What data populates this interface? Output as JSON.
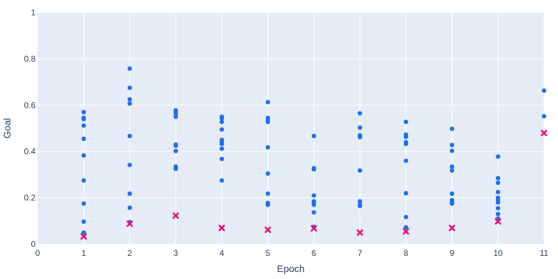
{
  "chart_data": {
    "type": "scatter",
    "title": "",
    "xlabel": "Epoch",
    "ylabel": "Goal",
    "xlim": [
      0,
      11
    ],
    "ylim": [
      0,
      1
    ],
    "xticks": [
      0,
      1,
      2,
      3,
      4,
      5,
      6,
      7,
      8,
      9,
      10,
      11
    ],
    "yticks": [
      0,
      0.2,
      0.4,
      0.6,
      0.8,
      1
    ],
    "ytick_labels": [
      "0",
      "0.2",
      "0.4",
      "0.6",
      "0.8",
      "1"
    ],
    "grid": true,
    "legend": "none",
    "colors": {
      "plot_bg": "#e5ecf6",
      "grid": "#ffffff",
      "points": "#1f6ff2",
      "best": "#e8107a",
      "text": "#2a3f5f"
    },
    "series": [
      {
        "marker": "circle",
        "points": [
          [
            1,
            0.57
          ],
          [
            1,
            0.545
          ],
          [
            1,
            0.54
          ],
          [
            1,
            0.512
          ],
          [
            1,
            0.455
          ],
          [
            1,
            0.383
          ],
          [
            1,
            0.275
          ],
          [
            1,
            0.175
          ],
          [
            1,
            0.097
          ],
          [
            1,
            0.05
          ],
          [
            2,
            0.758
          ],
          [
            2,
            0.675
          ],
          [
            2,
            0.625
          ],
          [
            2,
            0.607
          ],
          [
            2,
            0.467
          ],
          [
            2,
            0.342
          ],
          [
            2,
            0.218
          ],
          [
            2,
            0.157
          ],
          [
            2,
            0.095
          ],
          [
            3,
            0.578
          ],
          [
            3,
            0.57
          ],
          [
            3,
            0.562
          ],
          [
            3,
            0.55
          ],
          [
            3,
            0.43
          ],
          [
            3,
            0.425
          ],
          [
            3,
            0.402
          ],
          [
            3,
            0.335
          ],
          [
            3,
            0.325
          ],
          [
            4,
            0.55
          ],
          [
            4,
            0.543
          ],
          [
            4,
            0.528
          ],
          [
            4,
            0.495
          ],
          [
            4,
            0.45
          ],
          [
            4,
            0.44
          ],
          [
            4,
            0.433
          ],
          [
            4,
            0.412
          ],
          [
            4,
            0.368
          ],
          [
            4,
            0.275
          ],
          [
            5,
            0.613
          ],
          [
            5,
            0.545
          ],
          [
            5,
            0.535
          ],
          [
            5,
            0.528
          ],
          [
            5,
            0.418
          ],
          [
            5,
            0.305
          ],
          [
            5,
            0.218
          ],
          [
            5,
            0.178
          ],
          [
            5,
            0.17
          ],
          [
            6,
            0.467
          ],
          [
            6,
            0.328
          ],
          [
            6,
            0.323
          ],
          [
            6,
            0.21
          ],
          [
            6,
            0.185
          ],
          [
            6,
            0.175
          ],
          [
            6,
            0.17
          ],
          [
            6,
            0.137
          ],
          [
            6,
            0.075
          ],
          [
            7,
            0.565
          ],
          [
            7,
            0.503
          ],
          [
            7,
            0.47
          ],
          [
            7,
            0.462
          ],
          [
            7,
            0.318
          ],
          [
            7,
            0.185
          ],
          [
            7,
            0.17
          ],
          [
            7,
            0.165
          ],
          [
            8,
            0.528
          ],
          [
            8,
            0.473
          ],
          [
            8,
            0.463
          ],
          [
            8,
            0.44
          ],
          [
            8,
            0.433
          ],
          [
            8,
            0.36
          ],
          [
            8,
            0.22
          ],
          [
            8,
            0.117
          ],
          [
            8,
            0.073
          ],
          [
            9,
            0.498
          ],
          [
            9,
            0.428
          ],
          [
            9,
            0.403
          ],
          [
            9,
            0.335
          ],
          [
            9,
            0.318
          ],
          [
            9,
            0.218
          ],
          [
            9,
            0.19
          ],
          [
            9,
            0.18
          ],
          [
            9,
            0.175
          ],
          [
            10,
            0.378
          ],
          [
            10,
            0.285
          ],
          [
            10,
            0.265
          ],
          [
            10,
            0.225
          ],
          [
            10,
            0.2
          ],
          [
            10,
            0.19
          ],
          [
            10,
            0.18
          ],
          [
            10,
            0.155
          ],
          [
            10,
            0.13
          ],
          [
            10,
            0.11
          ],
          [
            11,
            0.663
          ],
          [
            11,
            0.552
          ]
        ]
      },
      {
        "marker": "x",
        "points": [
          [
            1,
            0.033
          ],
          [
            2,
            0.088
          ],
          [
            3,
            0.123
          ],
          [
            4,
            0.07
          ],
          [
            5,
            0.062
          ],
          [
            6,
            0.068
          ],
          [
            7,
            0.05
          ],
          [
            8,
            0.055
          ],
          [
            9,
            0.07
          ],
          [
            10,
            0.098
          ],
          [
            11,
            0.48
          ]
        ]
      }
    ]
  }
}
